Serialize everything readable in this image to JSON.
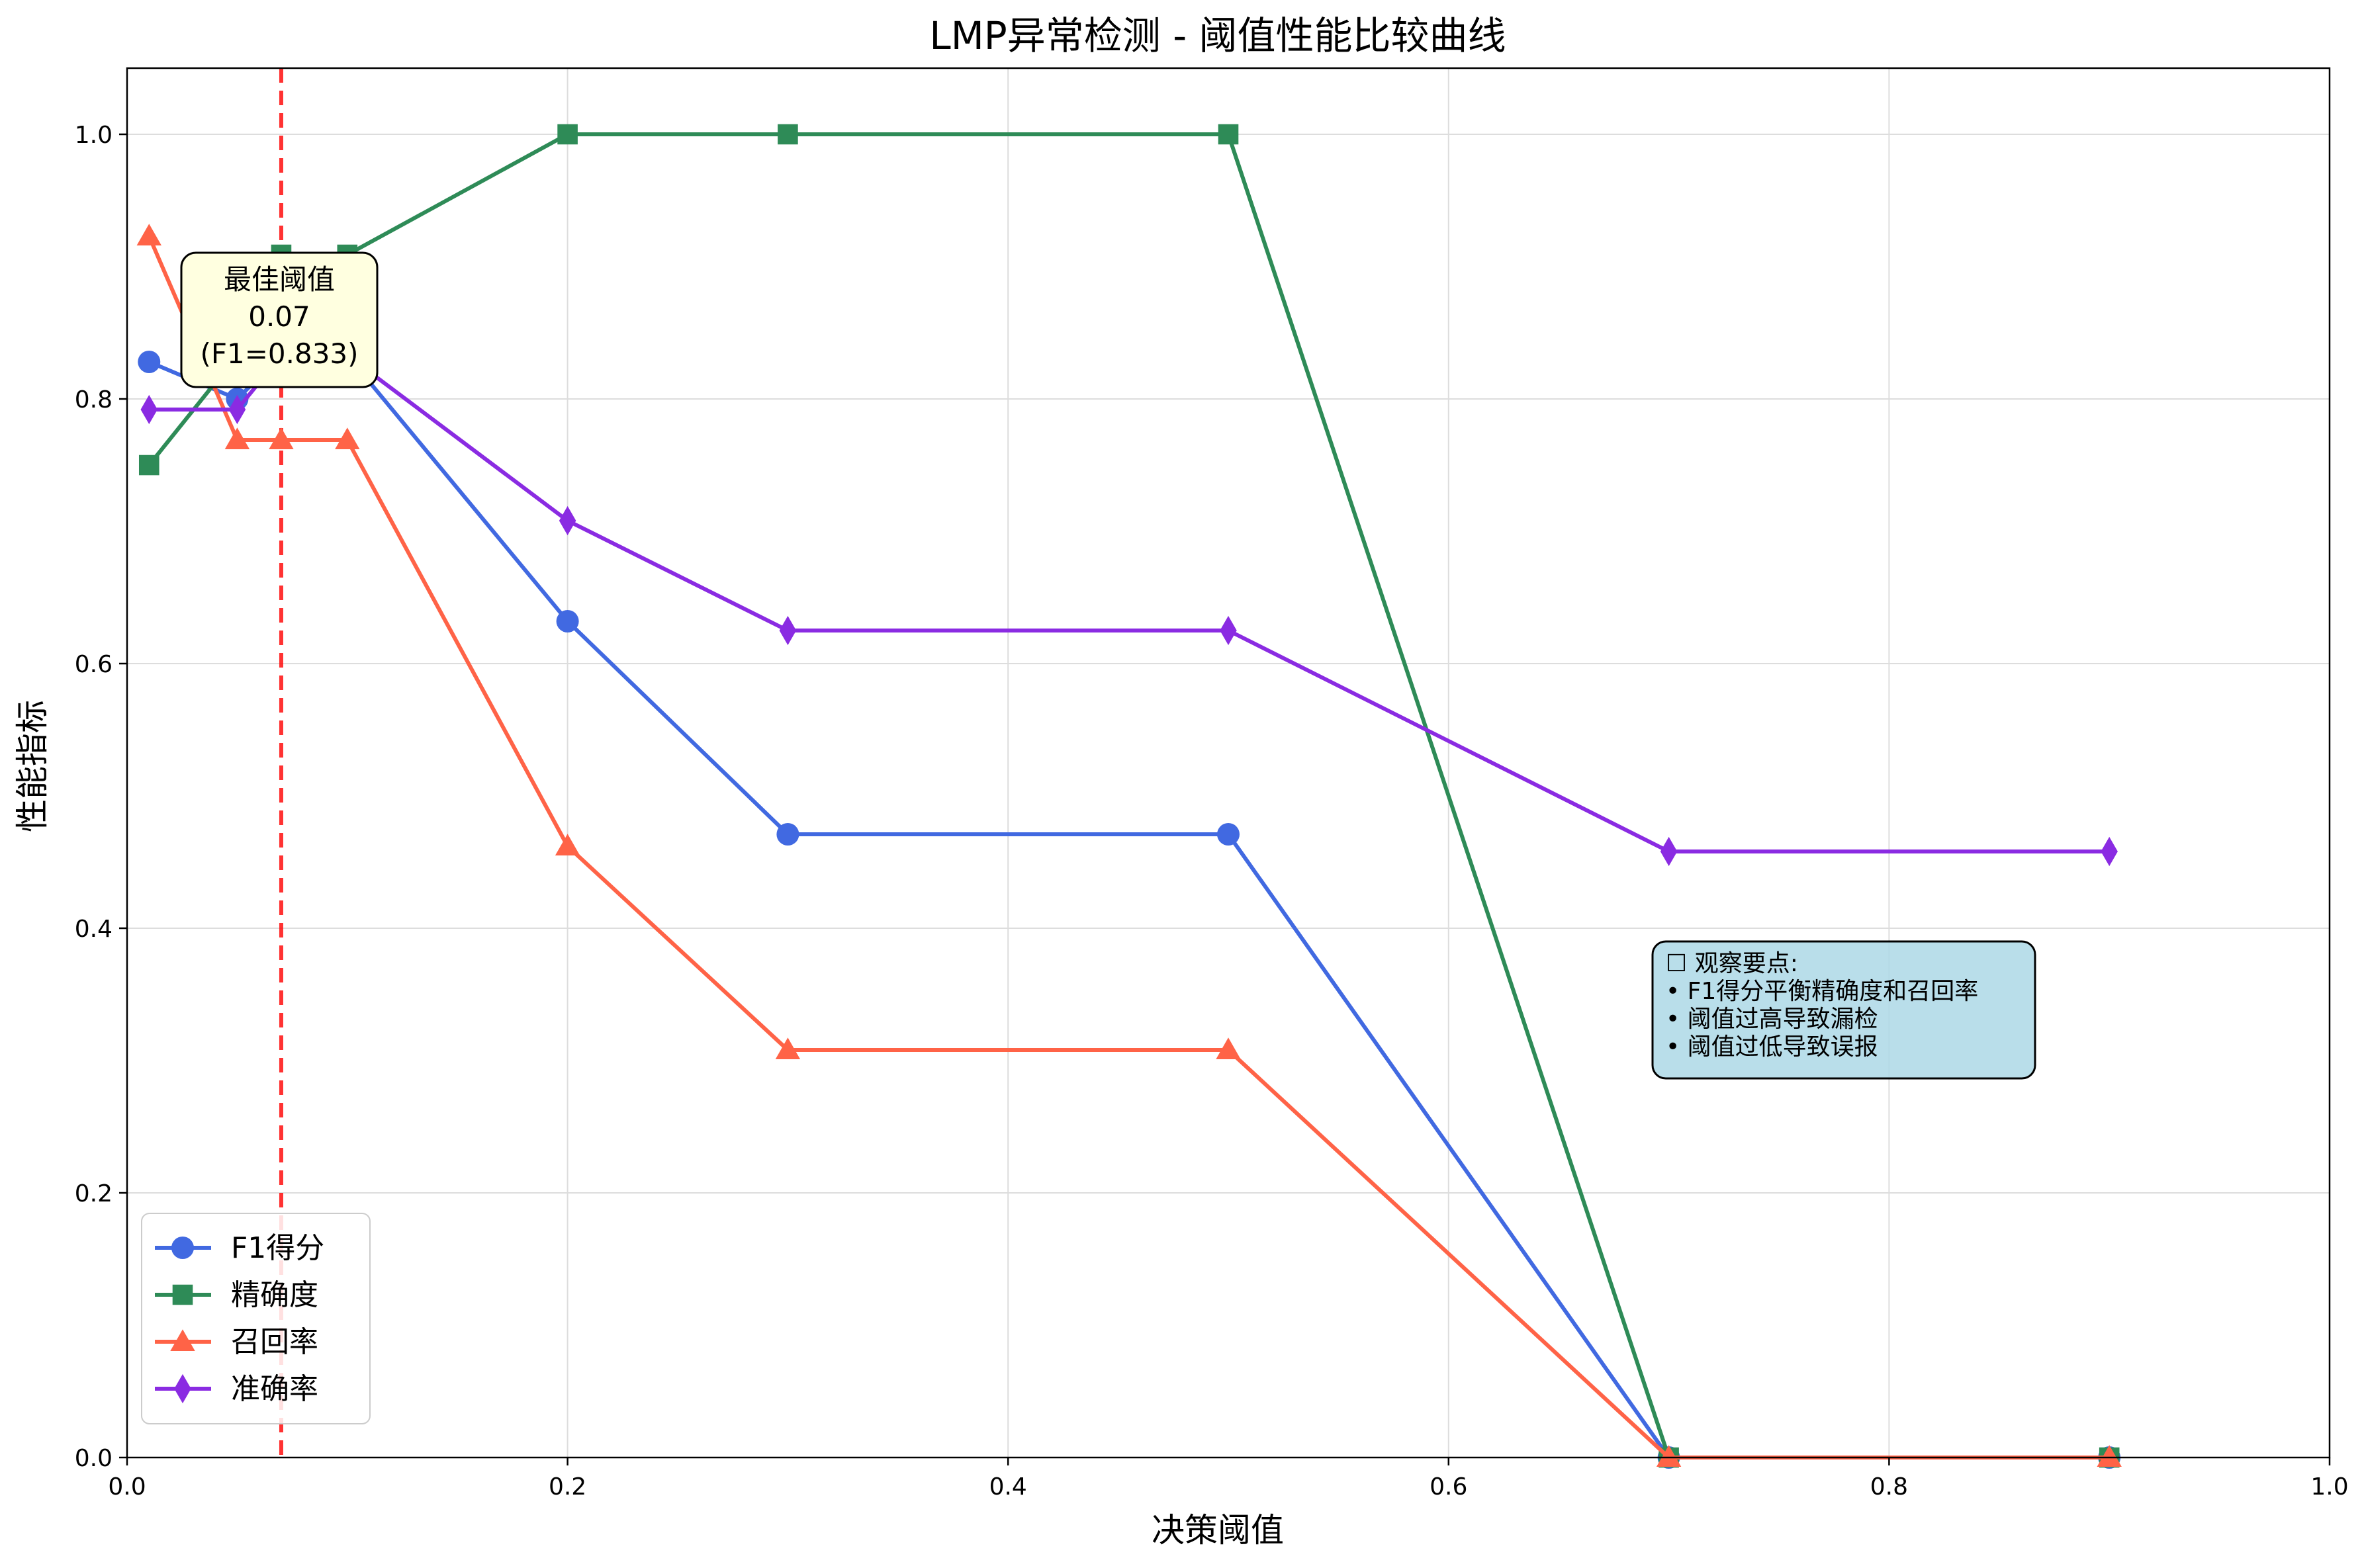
{
  "chart_data": {
    "type": "line",
    "title": "LMP异常检测 - 阈值性能比较曲线",
    "xlabel": "决策阈值",
    "ylabel": "性能指标",
    "xlim": [
      0,
      1.0
    ],
    "ylim": [
      0,
      1.05
    ],
    "x_ticks": [
      "0.0",
      "0.2",
      "0.4",
      "0.6",
      "0.8",
      "1.0"
    ],
    "y_ticks": [
      "0.0",
      "0.2",
      "0.4",
      "0.6",
      "0.8",
      "1.0"
    ],
    "grid": true,
    "legend_position": "lower-left",
    "x": [
      0.01,
      0.05,
      0.07,
      0.1,
      0.2,
      0.3,
      0.5,
      0.7,
      0.9
    ],
    "series": [
      {
        "name": "F1得分",
        "color": "#4169E1",
        "marker": "circle",
        "values": [
          0.828,
          0.8,
          0.833,
          0.833,
          0.632,
          0.471,
          0.471,
          0.0,
          0.0
        ]
      },
      {
        "name": "精确度",
        "color": "#2E8B57",
        "marker": "square",
        "values": [
          0.75,
          0.833,
          0.909,
          0.909,
          1.0,
          1.0,
          1.0,
          0.0,
          0.0
        ]
      },
      {
        "name": "召回率",
        "color": "#FF6347",
        "marker": "triangle",
        "values": [
          0.923,
          0.769,
          0.769,
          0.769,
          0.462,
          0.308,
          0.308,
          0.0,
          0.0
        ]
      },
      {
        "name": "准确率",
        "color": "#8A2BE2",
        "marker": "diamond",
        "values": [
          0.792,
          0.792,
          0.833,
          0.833,
          0.708,
          0.625,
          0.625,
          0.458,
          0.458
        ]
      }
    ],
    "best_threshold": {
      "x": 0.07,
      "color": "#FF0000",
      "lines": [
        "最佳阈值",
        "0.07",
        "(F1=0.833)"
      ]
    },
    "notes": {
      "lines": [
        "☐ 观察要点:",
        "• F1得分平衡精确度和召回率",
        "• 阈值过高导致漏检",
        "• 阈值过低导致误报"
      ],
      "background": "#ADD8E6"
    }
  }
}
